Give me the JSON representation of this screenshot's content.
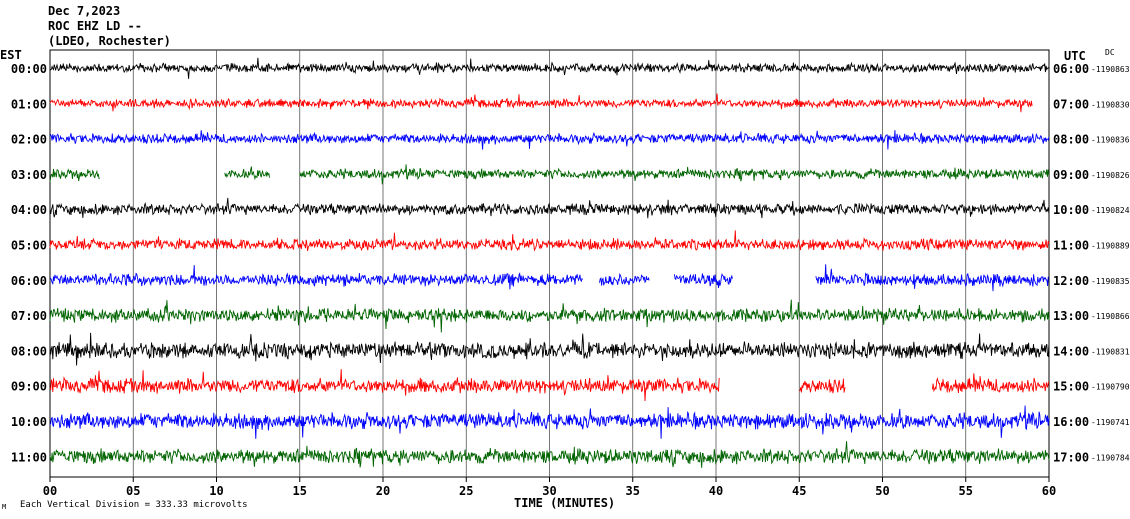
{
  "header": {
    "line1": "Dec 7,2023",
    "line2": "ROC EHZ LD --",
    "line3": "(LDEO, Rochester)"
  },
  "left_axis_title": "EST",
  "right_axis_title": "UTC",
  "dc_label": "DC",
  "footer": {
    "scale_note": "Each Vertical Division = 333.33 microvolts",
    "mark": "M"
  },
  "colors": {
    "black": "#000000",
    "red": "#ff0000",
    "blue": "#0000ff",
    "green": "#006400",
    "grid": "#000000"
  },
  "chart_data": {
    "type": "line",
    "xlabel": "TIME (MINUTES)",
    "xlim": [
      0,
      60
    ],
    "x_ticks": [
      "00",
      "05",
      "10",
      "15",
      "20",
      "25",
      "30",
      "35",
      "40",
      "45",
      "50",
      "55",
      "60"
    ],
    "rows": [
      {
        "est": "00:00",
        "utc": "06:00",
        "dc": "-1190863",
        "color": "black",
        "amp": 0.7,
        "gaps": []
      },
      {
        "est": "01:00",
        "utc": "07:00",
        "dc": "-1190830",
        "color": "red",
        "amp": 0.7,
        "gaps": [
          [
            59,
            60
          ]
        ]
      },
      {
        "est": "02:00",
        "utc": "08:00",
        "dc": "-1190836",
        "color": "blue",
        "amp": 0.8,
        "gaps": []
      },
      {
        "est": "03:00",
        "utc": "09:00",
        "dc": "-1190826",
        "color": "green",
        "amp": 0.8,
        "gaps": [
          [
            3,
            10.5
          ],
          [
            13.2,
            15
          ]
        ]
      },
      {
        "est": "04:00",
        "utc": "10:00",
        "dc": "-1190824",
        "color": "black",
        "amp": 0.9,
        "gaps": []
      },
      {
        "est": "05:00",
        "utc": "11:00",
        "dc": "-1190889",
        "color": "red",
        "amp": 0.9,
        "gaps": []
      },
      {
        "est": "06:00",
        "utc": "12:00",
        "dc": "-1190835",
        "color": "blue",
        "amp": 1.0,
        "gaps": [
          [
            32,
            33
          ],
          [
            36,
            37.5
          ],
          [
            41,
            46
          ]
        ]
      },
      {
        "est": "07:00",
        "utc": "13:00",
        "dc": "-1190866",
        "color": "green",
        "amp": 1.1,
        "gaps": []
      },
      {
        "est": "08:00",
        "utc": "14:00",
        "dc": "-1190831",
        "color": "black",
        "amp": 1.3,
        "gaps": []
      },
      {
        "est": "09:00",
        "utc": "15:00",
        "dc": "-1190790",
        "color": "red",
        "amp": 1.2,
        "gaps": [
          [
            40.2,
            45
          ],
          [
            47.8,
            53
          ]
        ]
      },
      {
        "est": "10:00",
        "utc": "16:00",
        "dc": "-1190741",
        "color": "blue",
        "amp": 1.3,
        "gaps": []
      },
      {
        "est": "11:00",
        "utc": "17:00",
        "dc": "-1190784",
        "color": "green",
        "amp": 1.2,
        "gaps": []
      }
    ]
  }
}
